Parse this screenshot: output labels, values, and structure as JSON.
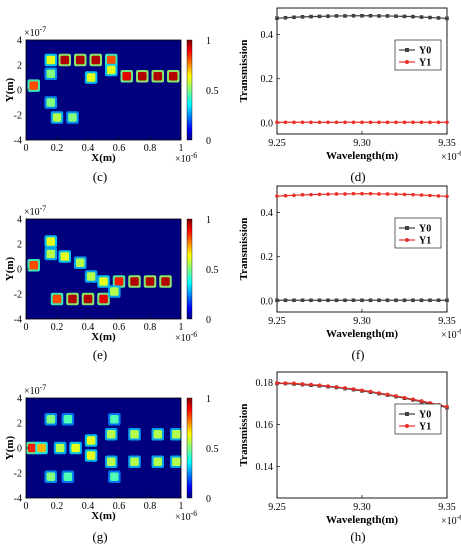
{
  "chart_data": [
    {
      "panel": "(c)",
      "type": "heatmap",
      "xlabel": "X(m)",
      "ylabel": "Y(m)",
      "x_exponent": "×10",
      "x_exponent_power": "-6",
      "y_exponent": "×10",
      "y_exponent_power": "-7",
      "xlim": [
        0,
        1
      ],
      "ylim": [
        -4,
        4
      ],
      "xticks": [
        "0",
        "0.2",
        "0.4",
        "0.6",
        "0.8",
        "1"
      ],
      "yticks": [
        "4",
        "2",
        "0",
        "-2",
        "-4"
      ],
      "colorbar": {
        "range": [
          0,
          1
        ],
        "ticks": [
          "1",
          "0.5",
          "0"
        ]
      },
      "background": "#00007f",
      "hotspots": [
        {
          "x": 0.05,
          "y": 0.35,
          "intensity": 0.8
        },
        {
          "x": 0.16,
          "y": 2.4,
          "intensity": 0.6
        },
        {
          "x": 0.25,
          "y": 2.4,
          "intensity": 0.95
        },
        {
          "x": 0.35,
          "y": 2.4,
          "intensity": 0.95
        },
        {
          "x": 0.45,
          "y": 2.4,
          "intensity": 0.95
        },
        {
          "x": 0.55,
          "y": 2.4,
          "intensity": 0.8
        },
        {
          "x": 0.55,
          "y": 1.6,
          "intensity": 0.6
        },
        {
          "x": 0.42,
          "y": 1.0,
          "intensity": 0.6
        },
        {
          "x": 0.65,
          "y": 1.1,
          "intensity": 0.9
        },
        {
          "x": 0.75,
          "y": 1.1,
          "intensity": 0.95
        },
        {
          "x": 0.85,
          "y": 1.1,
          "intensity": 0.95
        },
        {
          "x": 0.95,
          "y": 1.1,
          "intensity": 0.95
        },
        {
          "x": 0.16,
          "y": 1.3,
          "intensity": 0.5
        },
        {
          "x": 0.16,
          "y": -1.0,
          "intensity": 0.5
        },
        {
          "x": 0.2,
          "y": -2.2,
          "intensity": 0.55
        },
        {
          "x": 0.3,
          "y": -2.2,
          "intensity": 0.5
        }
      ]
    },
    {
      "panel": "(d)",
      "type": "line",
      "xlabel": "Wavelength(m)",
      "ylabel": "Transmission",
      "x_exponent": "×10",
      "x_exponent_power": "-6",
      "xlim": [
        9.25,
        9.35
      ],
      "ylim": [
        -0.05,
        0.52
      ],
      "xticks": [
        9.25,
        9.3,
        9.35
      ],
      "xtick_labels": [
        "9.25",
        "9.30",
        "9.35"
      ],
      "yticks": [
        0.0,
        0.2,
        0.4
      ],
      "ytick_labels": [
        "0.0",
        "0.2",
        "0.4"
      ],
      "legend_position": "right",
      "x": [
        9.25,
        9.255,
        9.26,
        9.265,
        9.27,
        9.275,
        9.28,
        9.285,
        9.29,
        9.295,
        9.3,
        9.305,
        9.31,
        9.315,
        9.32,
        9.325,
        9.33,
        9.335,
        9.34,
        9.345,
        9.35
      ],
      "series": [
        {
          "name": "Y0",
          "color": "#404040",
          "marker": "square",
          "values": [
            0.474,
            0.476,
            0.478,
            0.48,
            0.481,
            0.482,
            0.483,
            0.484,
            0.484,
            0.485,
            0.485,
            0.485,
            0.484,
            0.484,
            0.483,
            0.482,
            0.481,
            0.479,
            0.477,
            0.475,
            0.473
          ]
        },
        {
          "name": "Y1",
          "color": "#e8302a",
          "marker": "circle",
          "values": [
            0.003,
            0.003,
            0.003,
            0.003,
            0.003,
            0.003,
            0.003,
            0.003,
            0.003,
            0.003,
            0.003,
            0.003,
            0.003,
            0.003,
            0.003,
            0.003,
            0.003,
            0.003,
            0.003,
            0.003,
            0.003
          ]
        }
      ]
    },
    {
      "panel": "(e)",
      "type": "heatmap",
      "xlabel": "X(m)",
      "ylabel": "Y(m)",
      "x_exponent": "×10",
      "x_exponent_power": "-6",
      "y_exponent": "×10",
      "y_exponent_power": "-7",
      "xlim": [
        0,
        1
      ],
      "ylim": [
        -4,
        4
      ],
      "xticks": [
        "0",
        "0.2",
        "0.4",
        "0.6",
        "0.8",
        "1"
      ],
      "yticks": [
        "4",
        "2",
        "0",
        "-2",
        "-4"
      ],
      "colorbar": {
        "range": [
          0,
          1
        ],
        "ticks": [
          "1",
          "0.5",
          "0"
        ]
      },
      "background": "#00007f",
      "hotspots": [
        {
          "x": 0.05,
          "y": 0.3,
          "intensity": 0.8
        },
        {
          "x": 0.16,
          "y": 2.2,
          "intensity": 0.6
        },
        {
          "x": 0.16,
          "y": 1.2,
          "intensity": 0.55
        },
        {
          "x": 0.25,
          "y": 1.0,
          "intensity": 0.6
        },
        {
          "x": 0.35,
          "y": 0.5,
          "intensity": 0.55
        },
        {
          "x": 0.42,
          "y": -0.6,
          "intensity": 0.55
        },
        {
          "x": 0.5,
          "y": -1.0,
          "intensity": 0.6
        },
        {
          "x": 0.6,
          "y": -1.0,
          "intensity": 0.85
        },
        {
          "x": 0.7,
          "y": -1.0,
          "intensity": 0.95
        },
        {
          "x": 0.8,
          "y": -1.0,
          "intensity": 0.95
        },
        {
          "x": 0.9,
          "y": -1.0,
          "intensity": 0.95
        },
        {
          "x": 0.2,
          "y": -2.4,
          "intensity": 0.8
        },
        {
          "x": 0.3,
          "y": -2.4,
          "intensity": 0.95
        },
        {
          "x": 0.4,
          "y": -2.4,
          "intensity": 0.95
        },
        {
          "x": 0.5,
          "y": -2.4,
          "intensity": 0.9
        },
        {
          "x": 0.57,
          "y": -1.8,
          "intensity": 0.55
        }
      ]
    },
    {
      "panel": "(f)",
      "type": "line",
      "xlabel": "Wavelength(m)",
      "ylabel": "Transmission",
      "x_exponent": "×10",
      "x_exponent_power": "-6",
      "xlim": [
        9.25,
        9.35
      ],
      "ylim": [
        -0.05,
        0.52
      ],
      "xticks": [
        9.25,
        9.3,
        9.35
      ],
      "xtick_labels": [
        "9.25",
        "9.30",
        "9.35"
      ],
      "yticks": [
        0.0,
        0.2,
        0.4
      ],
      "ytick_labels": [
        "0.0",
        "0.2",
        "0.4"
      ],
      "legend_position": "right",
      "x": [
        9.25,
        9.255,
        9.26,
        9.265,
        9.27,
        9.275,
        9.28,
        9.285,
        9.29,
        9.295,
        9.3,
        9.305,
        9.31,
        9.315,
        9.32,
        9.325,
        9.33,
        9.335,
        9.34,
        9.345,
        9.35
      ],
      "series": [
        {
          "name": "Y0",
          "color": "#404040",
          "marker": "square",
          "values": [
            0.003,
            0.003,
            0.003,
            0.003,
            0.003,
            0.003,
            0.003,
            0.003,
            0.003,
            0.003,
            0.003,
            0.003,
            0.003,
            0.003,
            0.003,
            0.003,
            0.003,
            0.003,
            0.003,
            0.003,
            0.003
          ]
        },
        {
          "name": "Y1",
          "color": "#e8302a",
          "marker": "circle",
          "values": [
            0.474,
            0.476,
            0.478,
            0.48,
            0.481,
            0.482,
            0.483,
            0.484,
            0.484,
            0.485,
            0.485,
            0.485,
            0.484,
            0.484,
            0.483,
            0.482,
            0.481,
            0.479,
            0.477,
            0.475,
            0.473
          ]
        }
      ]
    },
    {
      "panel": "(g)",
      "type": "heatmap",
      "xlabel": "X(m)",
      "ylabel": "Y(m)",
      "x_exponent": "×10",
      "x_exponent_power": "-6",
      "y_exponent": "×10",
      "y_exponent_power": "-7",
      "xlim": [
        0,
        1
      ],
      "ylim": [
        -4,
        4
      ],
      "xticks": [
        "0",
        "0.2",
        "0.4",
        "0.6",
        "0.8",
        "1"
      ],
      "yticks": [
        "4",
        "2",
        "0",
        "-2",
        "-4"
      ],
      "colorbar": {
        "range": [
          0,
          1
        ],
        "ticks": [
          "1",
          "0.5",
          "0"
        ]
      },
      "background": "#00007f",
      "hotspots": [
        {
          "x": 0.04,
          "y": 0.0,
          "intensity": 0.85
        },
        {
          "x": 0.1,
          "y": 0.0,
          "intensity": 0.7
        },
        {
          "x": 0.16,
          "y": 2.3,
          "intensity": 0.5
        },
        {
          "x": 0.16,
          "y": -2.3,
          "intensity": 0.5
        },
        {
          "x": 0.27,
          "y": 2.3,
          "intensity": 0.45
        },
        {
          "x": 0.27,
          "y": -2.3,
          "intensity": 0.45
        },
        {
          "x": 0.22,
          "y": 0.0,
          "intensity": 0.55
        },
        {
          "x": 0.32,
          "y": 0.0,
          "intensity": 0.6
        },
        {
          "x": 0.42,
          "y": 0.6,
          "intensity": 0.6
        },
        {
          "x": 0.42,
          "y": -0.6,
          "intensity": 0.6
        },
        {
          "x": 0.55,
          "y": 1.1,
          "intensity": 0.55
        },
        {
          "x": 0.7,
          "y": 1.1,
          "intensity": 0.55
        },
        {
          "x": 0.85,
          "y": 1.1,
          "intensity": 0.55
        },
        {
          "x": 0.97,
          "y": 1.1,
          "intensity": 0.55
        },
        {
          "x": 0.55,
          "y": -1.1,
          "intensity": 0.55
        },
        {
          "x": 0.7,
          "y": -1.1,
          "intensity": 0.55
        },
        {
          "x": 0.85,
          "y": -1.1,
          "intensity": 0.55
        },
        {
          "x": 0.97,
          "y": -1.1,
          "intensity": 0.55
        },
        {
          "x": 0.57,
          "y": 2.3,
          "intensity": 0.45
        },
        {
          "x": 0.57,
          "y": -2.3,
          "intensity": 0.45
        }
      ]
    },
    {
      "panel": "(h)",
      "type": "line",
      "xlabel": "Wavelength(m)",
      "ylabel": "Transmission",
      "x_exponent": "×10",
      "x_exponent_power": "-6",
      "xlim": [
        9.25,
        9.35
      ],
      "ylim": [
        0.125,
        0.185
      ],
      "xticks": [
        9.25,
        9.3,
        9.35
      ],
      "xtick_labels": [
        "9.25",
        "9.30",
        "9.35"
      ],
      "yticks": [
        0.14,
        0.16,
        0.18
      ],
      "ytick_labels": [
        "0.14",
        "0.16",
        "0.18"
      ],
      "legend_position": "right",
      "x": [
        9.25,
        9.255,
        9.26,
        9.265,
        9.27,
        9.275,
        9.28,
        9.285,
        9.29,
        9.295,
        9.3,
        9.305,
        9.31,
        9.315,
        9.32,
        9.325,
        9.33,
        9.335,
        9.34,
        9.345,
        9.35
      ],
      "series": [
        {
          "name": "Y0",
          "color": "#404040",
          "marker": "square",
          "values": [
            0.1795,
            0.1795,
            0.1793,
            0.179,
            0.1787,
            0.1784,
            0.178,
            0.1776,
            0.1771,
            0.1766,
            0.176,
            0.1754,
            0.1747,
            0.174,
            0.1733,
            0.1725,
            0.1717,
            0.1708,
            0.1699,
            0.169,
            0.168
          ]
        },
        {
          "name": "Y1",
          "color": "#e8302a",
          "marker": "circle",
          "values": [
            0.1797,
            0.1797,
            0.1796,
            0.1793,
            0.179,
            0.1787,
            0.1783,
            0.1779,
            0.1774,
            0.1769,
            0.1763,
            0.1757,
            0.175,
            0.1743,
            0.1736,
            0.1728,
            0.172,
            0.1712,
            0.1703,
            0.1694,
            0.1685
          ]
        }
      ]
    }
  ]
}
